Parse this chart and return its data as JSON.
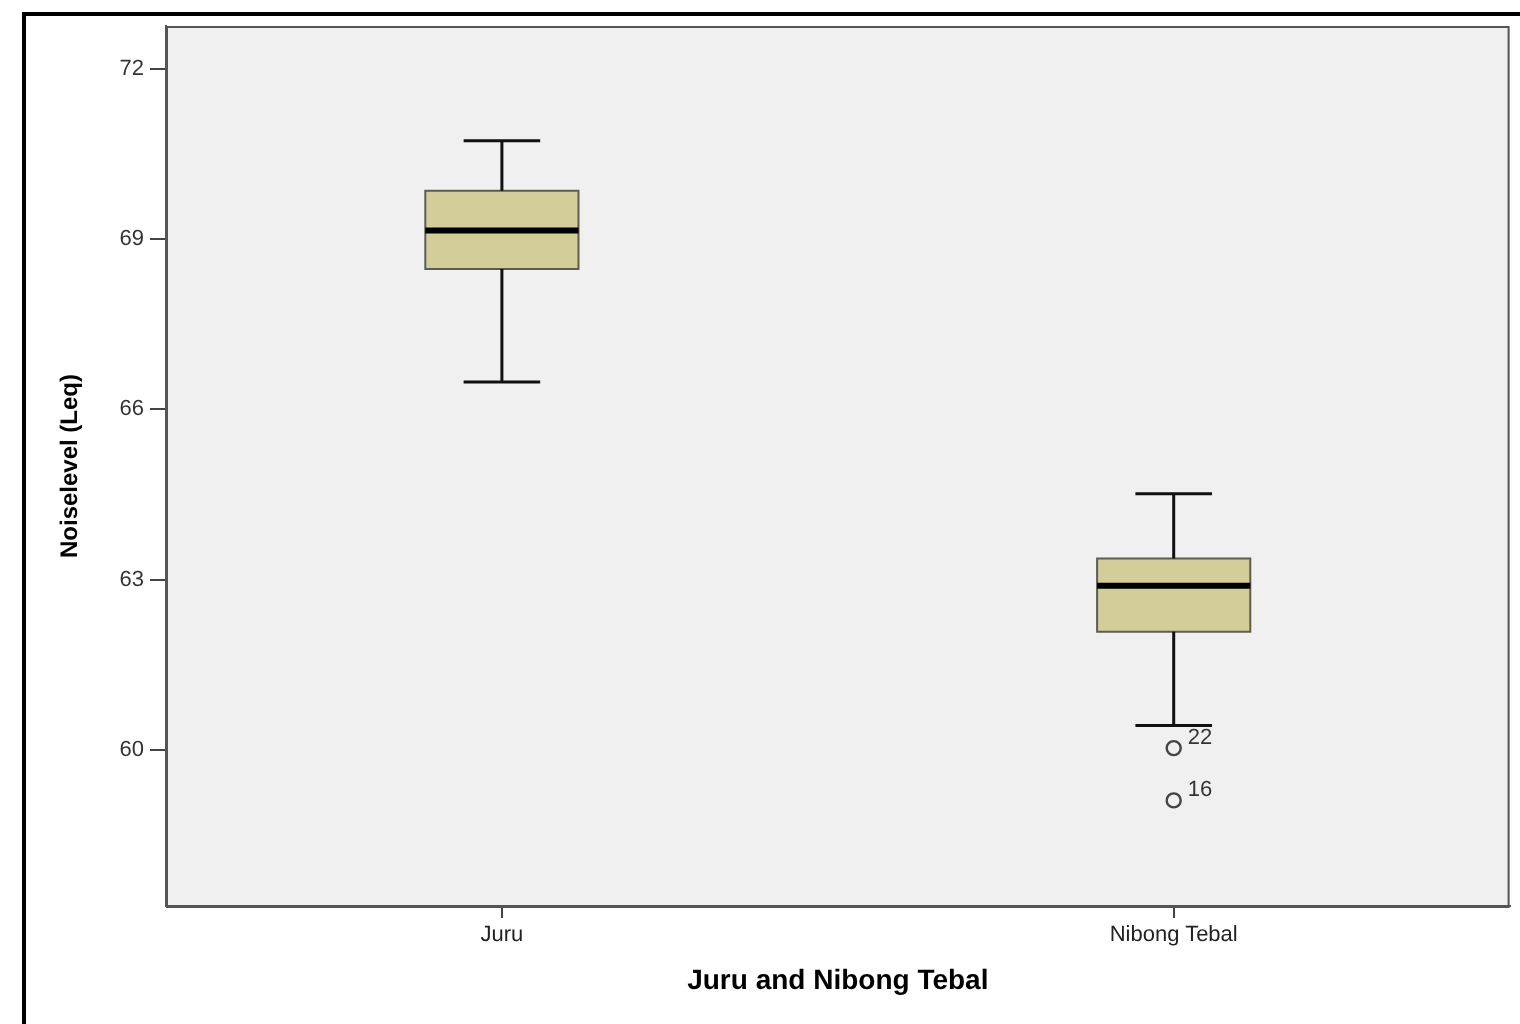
{
  "chart_data": {
    "type": "box",
    "xlabel": "Juru and Nibong Tebal",
    "ylabel": "Noiselevel (Leq)",
    "categories": [
      "Juru",
      "Nibong Tebal"
    ],
    "boxes": [
      {
        "low": 66.48,
        "q1": 68.47,
        "median": 69.15,
        "q3": 69.85,
        "high": 70.73
      },
      {
        "low": 60.43,
        "q1": 62.08,
        "median": 62.89,
        "q3": 63.37,
        "high": 64.51,
        "outliers": [
          60.03,
          59.11
        ]
      }
    ],
    "color": "#d3ce99",
    "ylim": [
      57.25,
      72.75
    ],
    "yticks": [
      60,
      63,
      66,
      69,
      72
    ],
    "grid": false,
    "annotations": [
      "22",
      "16"
    ]
  }
}
